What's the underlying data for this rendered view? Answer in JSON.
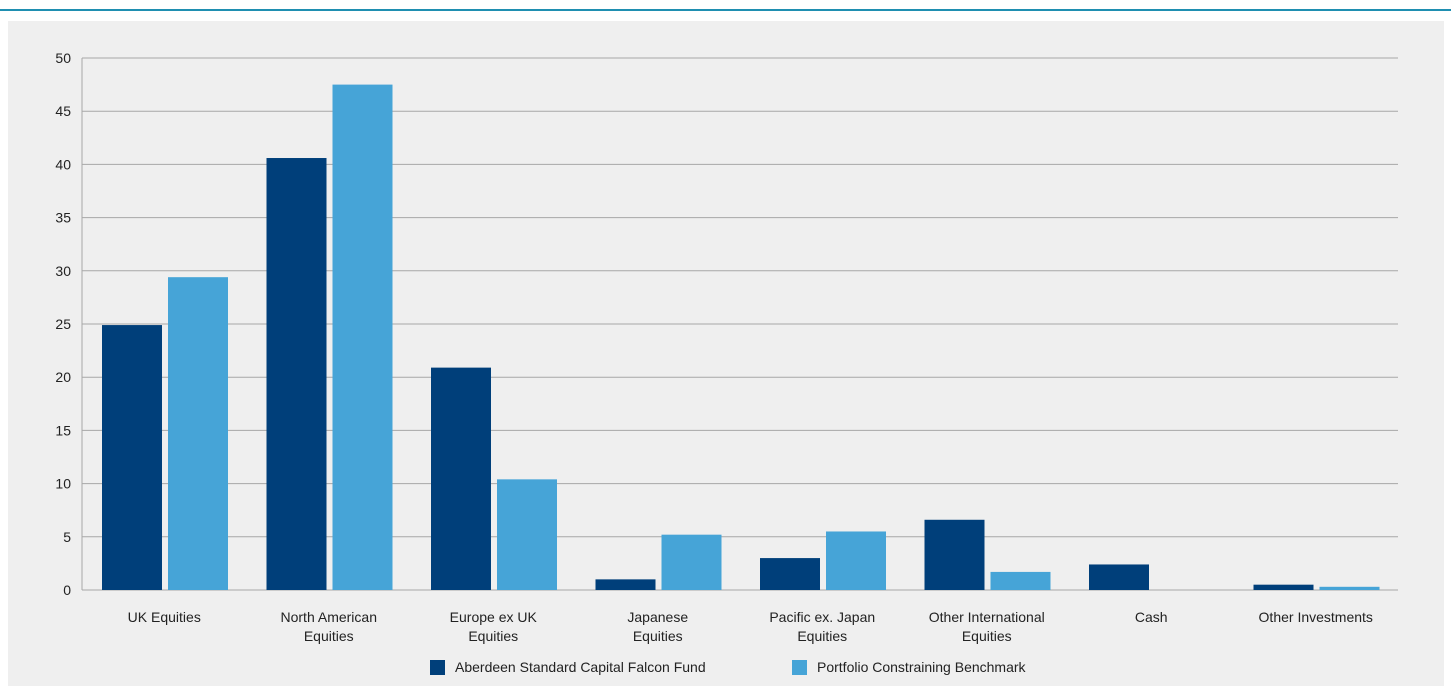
{
  "chart_data": {
    "type": "bar",
    "categories": [
      [
        "UK Equities"
      ],
      [
        "North American",
        "Equities"
      ],
      [
        "Europe ex UK",
        "Equities"
      ],
      [
        "Japanese",
        "Equities"
      ],
      [
        "Pacific ex. Japan",
        "Equities"
      ],
      [
        "Other International",
        "Equities"
      ],
      [
        "Cash"
      ],
      [
        "Other Investments"
      ]
    ],
    "series": [
      {
        "name": "Aberdeen Standard  Capital Falcon Fund",
        "color": "#003f7a",
        "values": [
          24.9,
          40.6,
          20.9,
          1.0,
          3.0,
          6.6,
          2.4,
          0.5
        ]
      },
      {
        "name": "Portfolio Constraining Benchmark",
        "color": "#46a4d7",
        "values": [
          29.4,
          47.5,
          10.4,
          5.2,
          5.5,
          1.7,
          0.0,
          0.3
        ]
      }
    ],
    "yticks": [
      0,
      5,
      10,
      15,
      20,
      25,
      30,
      35,
      40,
      45,
      50
    ],
    "ylim": [
      0,
      50
    ],
    "grid": true,
    "legend_position": "bottom-center"
  }
}
